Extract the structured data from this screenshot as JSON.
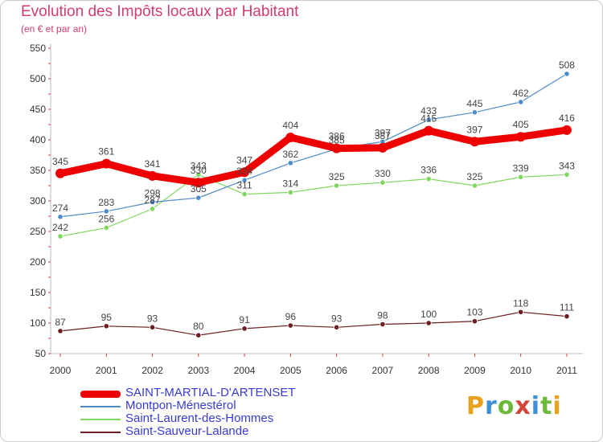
{
  "header": {
    "title": "Evolution des Impôts locaux par Habitant",
    "subtitle": "(en € et par an)"
  },
  "logo": {
    "text": "Proxiti"
  },
  "chart_data": {
    "type": "line",
    "title": "Evolution des Impôts locaux par Habitant",
    "subtitle": "(en € et par an)",
    "xlabel": "",
    "ylabel": "",
    "x": [
      2000,
      2001,
      2002,
      2003,
      2004,
      2005,
      2006,
      2007,
      2008,
      2009,
      2010,
      2011
    ],
    "x_labels": [
      "2000",
      "2001",
      "2002",
      "2003",
      "2004",
      "2005",
      "2006",
      "2007",
      "2008",
      "2009",
      "2010",
      "2011"
    ],
    "ylim": [
      50,
      550
    ],
    "y_ticks": [
      50,
      100,
      150,
      200,
      250,
      300,
      350,
      400,
      450,
      500,
      550
    ],
    "grid": false,
    "legend_position": "bottom-left",
    "series": [
      {
        "name": "SAINT-MARTIAL-D'ARTENSET",
        "values": [
          345,
          361,
          341,
          330,
          347,
          404,
          386,
          387,
          415,
          397,
          405,
          416
        ],
        "color": "#ee0000",
        "label_color": "#444444"
      },
      {
        "name": "Montpon-Ménestérol",
        "values": [
          274,
          283,
          298,
          305,
          334,
          362,
          385,
          397,
          433,
          445,
          462,
          508
        ],
        "color": "#4d8cc9",
        "label_color": "#444444"
      },
      {
        "name": "Saint-Laurent-des-Hommes",
        "values": [
          242,
          256,
          287,
          343,
          311,
          314,
          325,
          330,
          336,
          325,
          339,
          343
        ],
        "color": "#7fd860",
        "label_color": "#444444"
      },
      {
        "name": "Saint-Sauveur-Lalande",
        "values": [
          87,
          95,
          93,
          80,
          91,
          96,
          93,
          98,
          100,
          103,
          118,
          111
        ],
        "color": "#6e1d22",
        "label_color": "#444444"
      }
    ]
  }
}
